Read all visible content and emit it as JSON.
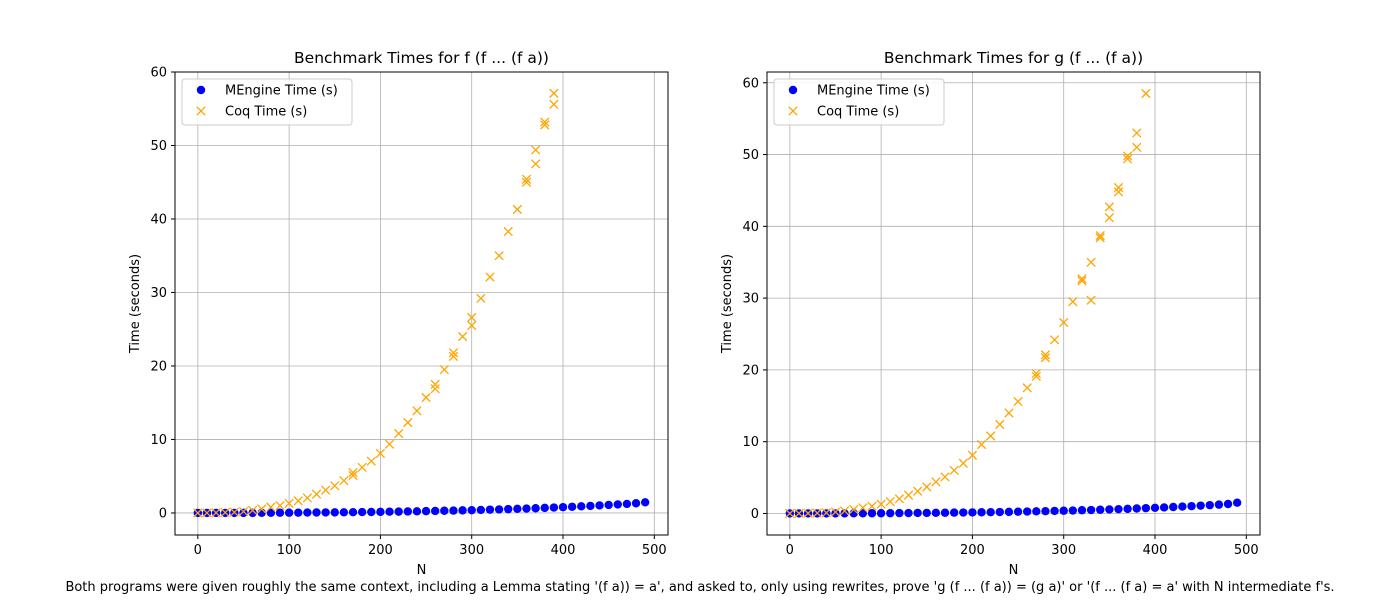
{
  "caption": "Both programs were given roughly the same context, including a Lemma stating '(f a)) = a', and asked to, only using rewrites, prove 'g (f ... (f a)) = (g a)' or '(f ... (f a) = a' with N intermediate f's.",
  "colors": {
    "mengine": "#0000ff",
    "coq": "#ffa500",
    "grid": "#b0b0b0"
  },
  "chart_data": [
    {
      "type": "scatter",
      "title": "Benchmark Times for f (f ... (f a))",
      "xlabel": "N",
      "ylabel": "Time (seconds)",
      "xlim": [
        -25,
        515
      ],
      "ylim": [
        -3,
        60
      ],
      "xticks": [
        0,
        100,
        200,
        300,
        400,
        500
      ],
      "yticks": [
        0,
        10,
        20,
        30,
        40,
        50,
        60
      ],
      "grid": true,
      "legend": "upper-left",
      "series": [
        {
          "name": "MEngine Time (s)",
          "marker": "circle",
          "x": [
            0,
            10,
            20,
            30,
            40,
            50,
            60,
            70,
            80,
            90,
            100,
            110,
            120,
            130,
            140,
            150,
            160,
            170,
            180,
            190,
            200,
            210,
            220,
            230,
            240,
            250,
            260,
            270,
            280,
            290,
            300,
            310,
            320,
            330,
            340,
            350,
            360,
            370,
            380,
            390,
            400,
            410,
            420,
            430,
            440,
            450,
            460,
            470,
            480,
            490
          ],
          "y": [
            0.0,
            0.0,
            0.0,
            0.0,
            0.0,
            0.01,
            0.01,
            0.02,
            0.02,
            0.03,
            0.03,
            0.04,
            0.05,
            0.06,
            0.07,
            0.08,
            0.09,
            0.1,
            0.12,
            0.13,
            0.15,
            0.17,
            0.18,
            0.2,
            0.22,
            0.25,
            0.27,
            0.3,
            0.32,
            0.35,
            0.38,
            0.41,
            0.45,
            0.48,
            0.52,
            0.56,
            0.6,
            0.64,
            0.69,
            0.74,
            0.79,
            0.84,
            0.9,
            0.96,
            1.02,
            1.09,
            1.16,
            1.23,
            1.32,
            1.45
          ]
        },
        {
          "name": "Coq Time (s)",
          "marker": "x",
          "x": [
            0,
            10,
            20,
            30,
            40,
            50,
            60,
            70,
            80,
            90,
            100,
            110,
            120,
            130,
            140,
            150,
            160,
            170,
            170,
            180,
            190,
            200,
            210,
            220,
            230,
            240,
            250,
            260,
            260,
            270,
            280,
            280,
            290,
            300,
            300,
            310,
            320,
            330,
            340,
            350,
            360,
            360,
            370,
            370,
            380,
            380,
            390,
            390
          ],
          "y": [
            0.0,
            0.01,
            0.03,
            0.06,
            0.1,
            0.2,
            0.35,
            0.55,
            0.8,
            1.0,
            1.3,
            1.65,
            2.05,
            2.55,
            3.1,
            3.7,
            4.4,
            5.1,
            5.5,
            6.2,
            7.05,
            8.1,
            9.35,
            10.8,
            12.3,
            13.9,
            15.7,
            16.9,
            17.5,
            19.5,
            21.3,
            21.8,
            24.0,
            25.5,
            26.6,
            29.2,
            32.1,
            35.0,
            38.3,
            41.3,
            45.0,
            45.4,
            47.5,
            49.4,
            52.8,
            53.2,
            55.6,
            57.1
          ]
        }
      ]
    },
    {
      "type": "scatter",
      "title": "Benchmark Times for g (f ... (f a))",
      "xlabel": "N",
      "ylabel": "Time (seconds)",
      "xlim": [
        -25,
        515
      ],
      "ylim": [
        -3,
        61.5
      ],
      "xticks": [
        0,
        100,
        200,
        300,
        400,
        500
      ],
      "yticks": [
        0,
        10,
        20,
        30,
        40,
        50,
        60
      ],
      "grid": true,
      "legend": "upper-left",
      "series": [
        {
          "name": "MEngine Time (s)",
          "marker": "circle",
          "x": [
            0,
            10,
            20,
            30,
            40,
            50,
            60,
            70,
            80,
            90,
            100,
            110,
            120,
            130,
            140,
            150,
            160,
            170,
            180,
            190,
            200,
            210,
            220,
            230,
            240,
            250,
            260,
            270,
            280,
            290,
            300,
            310,
            320,
            330,
            340,
            350,
            360,
            370,
            380,
            390,
            400,
            410,
            420,
            430,
            440,
            450,
            460,
            470,
            480,
            490
          ],
          "y": [
            0.0,
            0.0,
            0.0,
            0.0,
            0.0,
            0.01,
            0.01,
            0.02,
            0.02,
            0.03,
            0.03,
            0.04,
            0.05,
            0.06,
            0.07,
            0.08,
            0.09,
            0.1,
            0.12,
            0.13,
            0.15,
            0.17,
            0.18,
            0.2,
            0.22,
            0.25,
            0.27,
            0.3,
            0.32,
            0.35,
            0.38,
            0.41,
            0.45,
            0.48,
            0.52,
            0.56,
            0.6,
            0.64,
            0.69,
            0.74,
            0.79,
            0.84,
            0.9,
            0.96,
            1.02,
            1.09,
            1.16,
            1.23,
            1.32,
            1.5
          ]
        },
        {
          "name": "Coq Time (s)",
          "marker": "x",
          "x": [
            0,
            10,
            20,
            30,
            40,
            50,
            60,
            70,
            80,
            90,
            100,
            110,
            120,
            130,
            140,
            150,
            160,
            170,
            180,
            190,
            200,
            210,
            220,
            230,
            240,
            250,
            260,
            270,
            270,
            280,
            280,
            290,
            300,
            310,
            320,
            320,
            330,
            330,
            340,
            340,
            350,
            350,
            360,
            360,
            370,
            370,
            380,
            380,
            390
          ],
          "y": [
            0.0,
            0.01,
            0.03,
            0.06,
            0.1,
            0.2,
            0.35,
            0.55,
            0.8,
            1.0,
            1.3,
            1.65,
            2.05,
            2.55,
            3.1,
            3.7,
            4.4,
            5.1,
            6.0,
            7.0,
            8.1,
            9.6,
            10.8,
            12.4,
            14.0,
            15.6,
            17.5,
            19.1,
            19.5,
            21.7,
            22.1,
            24.2,
            26.6,
            29.5,
            32.4,
            32.7,
            29.7,
            35.0,
            38.4,
            38.7,
            41.2,
            42.7,
            44.8,
            45.4,
            49.4,
            49.8,
            51.0,
            53.0,
            58.5
          ]
        }
      ]
    }
  ]
}
